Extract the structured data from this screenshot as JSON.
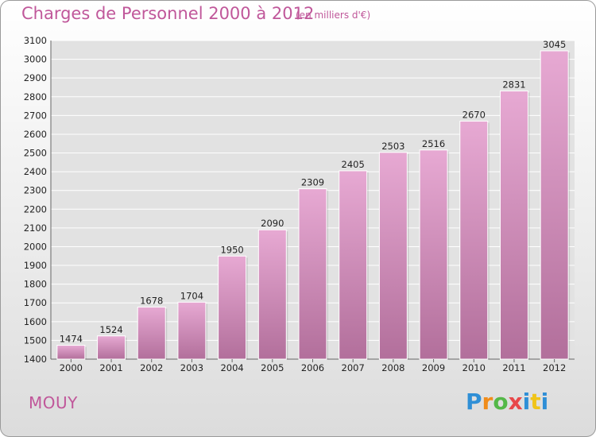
{
  "header": {
    "title": "Charges de Personnel 2000 à 2012",
    "subtitle": "(en milliers d'€)"
  },
  "footer": {
    "place": "MOUY",
    "logo": [
      "P",
      "r",
      "o",
      "x",
      "i",
      "t",
      "i"
    ]
  },
  "colors": {
    "accent": "#c0579a",
    "bar_top": "#e7a9d3",
    "bar_bottom": "#b26f9b",
    "grid": "#ffffff"
  },
  "chart_data": {
    "type": "bar",
    "title": "Charges de Personnel 2000 à 2012",
    "categories": [
      "2000",
      "2001",
      "2002",
      "2003",
      "2004",
      "2005",
      "2006",
      "2007",
      "2008",
      "2009",
      "2010",
      "2011",
      "2012"
    ],
    "values": [
      1474,
      1524,
      1678,
      1704,
      1950,
      2090,
      2309,
      2405,
      2503,
      2516,
      2670,
      2831,
      3045
    ],
    "ylim": [
      1400,
      3100
    ],
    "yticks": [
      1400,
      1500,
      1600,
      1700,
      1800,
      1900,
      2000,
      2100,
      2200,
      2300,
      2400,
      2500,
      2600,
      2700,
      2800,
      2900,
      3000,
      3100
    ],
    "grid": true,
    "xlabel": "",
    "ylabel": ""
  }
}
